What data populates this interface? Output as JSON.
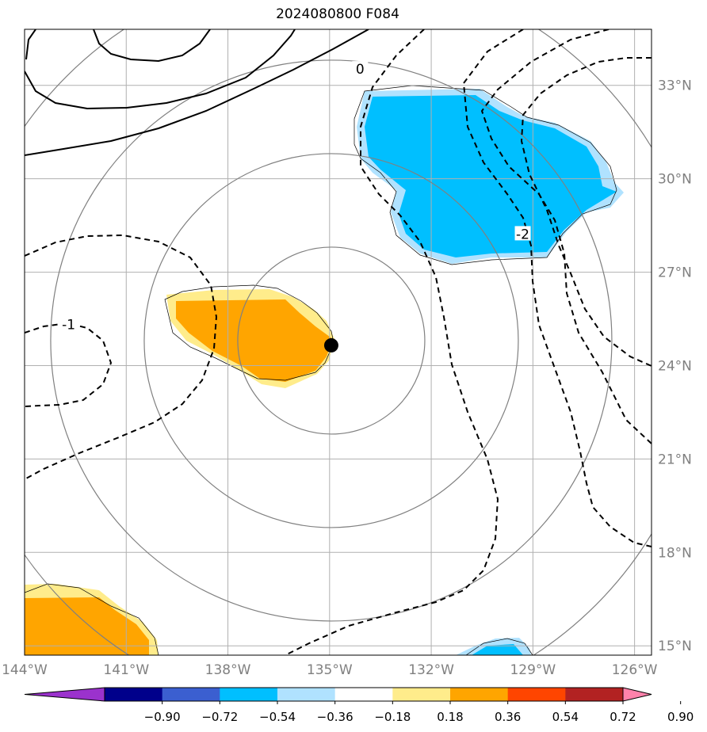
{
  "title": "2024080800 F084",
  "map": {
    "lon_range": [
      -144,
      -125.5
    ],
    "lat_range": [
      14.7,
      34.8
    ],
    "lon_ticks": [
      {
        "value": -144,
        "label": "144°W"
      },
      {
        "value": -141,
        "label": "141°W"
      },
      {
        "value": -138,
        "label": "138°W"
      },
      {
        "value": -135,
        "label": "135°W"
      },
      {
        "value": -132,
        "label": "132°W"
      },
      {
        "value": -129,
        "label": "129°W"
      },
      {
        "value": -126,
        "label": "126°W"
      }
    ],
    "lat_ticks": [
      {
        "value": 15,
        "label": "15°N"
      },
      {
        "value": 18,
        "label": "18°N"
      },
      {
        "value": 21,
        "label": "21°N"
      },
      {
        "value": 24,
        "label": "24°N"
      },
      {
        "value": 27,
        "label": "27°N"
      },
      {
        "value": 30,
        "label": "30°N"
      },
      {
        "value": 33,
        "label": "33°N"
      }
    ],
    "grid": true,
    "center_marker": {
      "lon": -134.95,
      "lat": 24.65
    },
    "contour_labels": [
      {
        "text": "0",
        "lon": -134.1,
        "lat": 33.5
      },
      {
        "text": "-1",
        "lon": -142.7,
        "lat": 25.3
      },
      {
        "text": "-2",
        "lon": -129.3,
        "lat": 28.2
      }
    ],
    "colorbar": {
      "colors": [
        "#9b32cd",
        "#00008b",
        "#3b5fd0",
        "#00bfff",
        "#b0e2ff",
        "#ffffff",
        "#ffec8b",
        "#ffa500",
        "#ff4500",
        "#b22222",
        "#ff82ab"
      ],
      "ticks": [
        "−0.90",
        "−0.72",
        "−0.54",
        "−0.36",
        "−0.18",
        "0.18",
        "0.36",
        "0.54",
        "0.72",
        "0.90"
      ]
    }
  }
}
